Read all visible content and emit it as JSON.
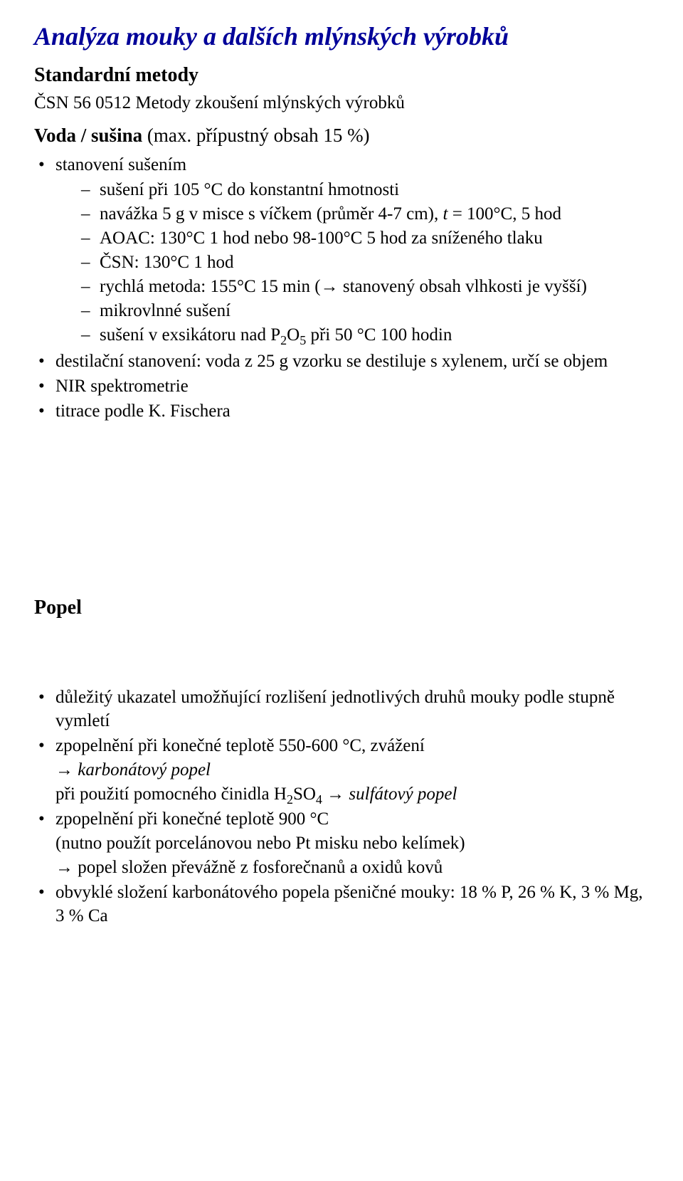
{
  "title": "Analýza mouky a dalších mlýnských výrobků",
  "subheading_standard": "Standardní metody",
  "standard_ref": "ČSN 56 0512 Metody zkoušení mlýnských výrobků",
  "section_voda": {
    "heading": "Voda / sušina",
    "heading_suffix": "(max. přípustný obsah 15 %)",
    "b1": "stanovení sušením",
    "d1": "sušení při 105 °C do konstantní hmotnosti",
    "d2_a": "navážka 5 g v misce s víčkem (průměr 4-7 cm), ",
    "d2_t": "t",
    "d2_b": " = 100°C, 5 hod",
    "d3": "AOAC: 130°C 1 hod nebo 98-100°C 5 hod za sníženého tlaku",
    "d4": "ČSN: 130°C 1 hod",
    "d5": "rychlá metoda: 155°C 15 min (→ stanovený obsah vlhkosti je vyšší)",
    "d6": "mikrovlnné sušení",
    "d7_a": "sušení v exsikátoru nad P",
    "d7_b": "O",
    "d7_c": " při 50 °C 100 hodin",
    "b2": "destilační stanovení: voda z 25 g vzorku se destiluje s xylenem, určí se objem",
    "b3": "NIR spektrometrie",
    "b4": "titrace podle K. Fischera"
  },
  "section_popel": {
    "heading": "Popel",
    "b1": "důležitý ukazatel umožňující rozlišení jednotlivých druhů mouky podle stupně vymletí",
    "b2_a": "zpopelnění při konečné teplotě 550-600 °C, zvážení",
    "b2_b": "→ ",
    "b2_c": "karbonátový popel",
    "b2_d": "při použití pomocného činidla H",
    "b2_e": "SO",
    "b2_f": " → ",
    "b2_g": "sulfátový popel",
    "b3_a": "zpopelnění při konečné teplotě 900 °C",
    "b3_b": "(nutno použít porcelánovou nebo Pt misku nebo kelímek)",
    "b3_c": "→ popel složen převážně z fosforečnanů a oxidů kovů",
    "b4": "obvyklé složení karbonátového popela pšeničné mouky: 18 % P, 26 % K, 3 % Mg, 3 % Ca"
  }
}
